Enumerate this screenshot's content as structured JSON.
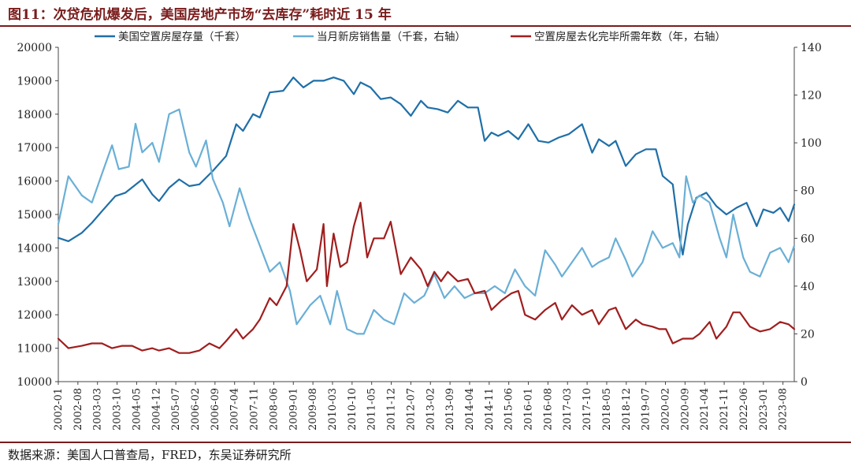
{
  "header": {
    "title": "图11：次贷危机爆发后，美国房地产市场“去库存”耗时近 15 年"
  },
  "footer": {
    "source": "数据来源：美国人口普查局，FRED，东吴证券研究所"
  },
  "colors": {
    "inventory": "#1f6fa8",
    "new_sales": "#6aafd6",
    "months_supply": "#a01e1e",
    "title": "#7a1c1c"
  },
  "chart_data": {
    "type": "line",
    "legend_position": "top",
    "grid": false,
    "x_tick_labels": [
      "2002-01",
      "2002-08",
      "2003-03",
      "2003-10",
      "2004-05",
      "2004-12",
      "2005-07",
      "2006-02",
      "2006-09",
      "2007-04",
      "2007-11",
      "2008-06",
      "2009-01",
      "2009-08",
      "2010-03",
      "2010-10",
      "2011-05",
      "2011-12",
      "2012-07",
      "2013-02",
      "2013-09",
      "2014-04",
      "2014-11",
      "2015-06",
      "2016-01",
      "2016-08",
      "2017-03",
      "2017-10",
      "2018-05",
      "2018-12",
      "2019-07",
      "2020-02",
      "2020-09",
      "2021-04",
      "2021-11",
      "2022-06",
      "2023-01",
      "2023-08"
    ],
    "x_range": [
      2002.0,
      2023.92
    ],
    "left_axis": {
      "min": 10000,
      "max": 20000,
      "ticks": [
        10000,
        11000,
        12000,
        13000,
        14000,
        15000,
        16000,
        17000,
        18000,
        19000,
        20000
      ]
    },
    "right_axis": {
      "min": 0,
      "max": 140,
      "ticks": [
        0,
        20,
        40,
        60,
        80,
        100,
        120,
        140
      ]
    },
    "series": [
      {
        "name": "美国空置房屋存量（千套）",
        "axis": "left",
        "color_key": "inventory",
        "points": [
          [
            2002.0,
            14300
          ],
          [
            2002.3,
            14200
          ],
          [
            2002.7,
            14450
          ],
          [
            2003.0,
            14750
          ],
          [
            2003.3,
            15100
          ],
          [
            2003.7,
            15550
          ],
          [
            2004.0,
            15650
          ],
          [
            2004.5,
            16050
          ],
          [
            2004.8,
            15600
          ],
          [
            2005.0,
            15400
          ],
          [
            2005.3,
            15800
          ],
          [
            2005.6,
            16050
          ],
          [
            2005.9,
            15850
          ],
          [
            2006.2,
            15900
          ],
          [
            2006.6,
            16300
          ],
          [
            2007.0,
            16750
          ],
          [
            2007.3,
            17700
          ],
          [
            2007.5,
            17500
          ],
          [
            2007.8,
            18000
          ],
          [
            2008.0,
            17900
          ],
          [
            2008.3,
            18650
          ],
          [
            2008.7,
            18700
          ],
          [
            2009.0,
            19100
          ],
          [
            2009.3,
            18800
          ],
          [
            2009.6,
            19000
          ],
          [
            2009.9,
            19000
          ],
          [
            2010.2,
            19100
          ],
          [
            2010.5,
            19000
          ],
          [
            2010.8,
            18600
          ],
          [
            2011.0,
            18950
          ],
          [
            2011.3,
            18800
          ],
          [
            2011.6,
            18450
          ],
          [
            2011.9,
            18500
          ],
          [
            2012.2,
            18300
          ],
          [
            2012.5,
            17950
          ],
          [
            2012.8,
            18400
          ],
          [
            2013.0,
            18200
          ],
          [
            2013.3,
            18150
          ],
          [
            2013.6,
            18050
          ],
          [
            2013.9,
            18400
          ],
          [
            2014.2,
            18200
          ],
          [
            2014.5,
            18200
          ],
          [
            2014.7,
            17200
          ],
          [
            2014.9,
            17450
          ],
          [
            2015.1,
            17350
          ],
          [
            2015.4,
            17500
          ],
          [
            2015.7,
            17250
          ],
          [
            2016.0,
            17700
          ],
          [
            2016.3,
            17200
          ],
          [
            2016.6,
            17150
          ],
          [
            2016.9,
            17300
          ],
          [
            2017.2,
            17400
          ],
          [
            2017.6,
            17700
          ],
          [
            2017.9,
            16850
          ],
          [
            2018.1,
            17250
          ],
          [
            2018.4,
            17050
          ],
          [
            2018.6,
            17200
          ],
          [
            2018.9,
            16450
          ],
          [
            2019.2,
            16800
          ],
          [
            2019.5,
            16950
          ],
          [
            2019.8,
            16950
          ],
          [
            2020.0,
            16150
          ],
          [
            2020.3,
            15900
          ],
          [
            2020.5,
            14350
          ],
          [
            2020.6,
            13800
          ],
          [
            2020.75,
            14700
          ],
          [
            2021.0,
            15500
          ],
          [
            2021.3,
            15650
          ],
          [
            2021.6,
            15250
          ],
          [
            2021.9,
            15000
          ],
          [
            2022.2,
            15200
          ],
          [
            2022.5,
            15350
          ],
          [
            2022.8,
            14650
          ],
          [
            2023.0,
            15150
          ],
          [
            2023.3,
            15050
          ],
          [
            2023.5,
            15200
          ],
          [
            2023.75,
            14800
          ],
          [
            2023.92,
            15300
          ]
        ]
      },
      {
        "name": "当月新房销售量（千套，右轴）",
        "axis": "right",
        "color_key": "new_sales",
        "points": [
          [
            2002.0,
            66
          ],
          [
            2002.3,
            86
          ],
          [
            2002.7,
            78
          ],
          [
            2003.0,
            75
          ],
          [
            2003.3,
            87
          ],
          [
            2003.6,
            99
          ],
          [
            2003.8,
            89
          ],
          [
            2004.1,
            90
          ],
          [
            2004.3,
            108
          ],
          [
            2004.5,
            96
          ],
          [
            2004.8,
            100
          ],
          [
            2005.0,
            92
          ],
          [
            2005.3,
            112
          ],
          [
            2005.6,
            114
          ],
          [
            2005.9,
            96
          ],
          [
            2006.1,
            90
          ],
          [
            2006.4,
            101
          ],
          [
            2006.6,
            85
          ],
          [
            2006.9,
            75
          ],
          [
            2007.1,
            65
          ],
          [
            2007.4,
            81
          ],
          [
            2007.7,
            68
          ],
          [
            2008.0,
            57
          ],
          [
            2008.3,
            46
          ],
          [
            2008.6,
            50
          ],
          [
            2008.9,
            38
          ],
          [
            2009.1,
            24
          ],
          [
            2009.5,
            32
          ],
          [
            2009.8,
            36
          ],
          [
            2010.1,
            24
          ],
          [
            2010.3,
            38
          ],
          [
            2010.6,
            22
          ],
          [
            2010.9,
            20
          ],
          [
            2011.1,
            20
          ],
          [
            2011.4,
            30
          ],
          [
            2011.7,
            26
          ],
          [
            2012.0,
            24
          ],
          [
            2012.3,
            37
          ],
          [
            2012.6,
            33
          ],
          [
            2012.9,
            36
          ],
          [
            2013.2,
            45
          ],
          [
            2013.5,
            35
          ],
          [
            2013.8,
            40
          ],
          [
            2014.1,
            35
          ],
          [
            2014.4,
            37
          ],
          [
            2014.7,
            37
          ],
          [
            2015.0,
            40
          ],
          [
            2015.3,
            37
          ],
          [
            2015.6,
            47
          ],
          [
            2015.9,
            40
          ],
          [
            2016.2,
            36
          ],
          [
            2016.5,
            55
          ],
          [
            2016.8,
            49
          ],
          [
            2017.0,
            44
          ],
          [
            2017.3,
            50
          ],
          [
            2017.6,
            56
          ],
          [
            2017.9,
            48
          ],
          [
            2018.1,
            50
          ],
          [
            2018.4,
            52
          ],
          [
            2018.6,
            60
          ],
          [
            2018.9,
            51
          ],
          [
            2019.1,
            44
          ],
          [
            2019.4,
            50
          ],
          [
            2019.7,
            63
          ],
          [
            2020.0,
            56
          ],
          [
            2020.3,
            58
          ],
          [
            2020.5,
            52
          ],
          [
            2020.7,
            86
          ],
          [
            2020.9,
            75
          ],
          [
            2021.1,
            78
          ],
          [
            2021.4,
            75
          ],
          [
            2021.7,
            60
          ],
          [
            2021.9,
            52
          ],
          [
            2022.1,
            70
          ],
          [
            2022.4,
            52
          ],
          [
            2022.6,
            46
          ],
          [
            2022.9,
            44
          ],
          [
            2023.2,
            54
          ],
          [
            2023.5,
            56
          ],
          [
            2023.75,
            50
          ],
          [
            2023.92,
            57
          ]
        ]
      },
      {
        "name": "空置房屋去化完毕所需年数（年，右轴）",
        "axis": "right",
        "color_key": "months_supply",
        "points": [
          [
            2002.0,
            18
          ],
          [
            2002.3,
            14
          ],
          [
            2002.7,
            15
          ],
          [
            2003.0,
            16
          ],
          [
            2003.3,
            16
          ],
          [
            2003.6,
            14
          ],
          [
            2003.9,
            15
          ],
          [
            2004.2,
            15
          ],
          [
            2004.5,
            13
          ],
          [
            2004.8,
            14
          ],
          [
            2005.0,
            13
          ],
          [
            2005.3,
            14
          ],
          [
            2005.6,
            12
          ],
          [
            2005.9,
            12
          ],
          [
            2006.2,
            13
          ],
          [
            2006.5,
            16
          ],
          [
            2006.8,
            14
          ],
          [
            2007.0,
            17
          ],
          [
            2007.3,
            22
          ],
          [
            2007.5,
            18
          ],
          [
            2007.8,
            22
          ],
          [
            2008.0,
            26
          ],
          [
            2008.3,
            35
          ],
          [
            2008.5,
            32
          ],
          [
            2008.8,
            40
          ],
          [
            2009.0,
            66
          ],
          [
            2009.2,
            55
          ],
          [
            2009.4,
            42
          ],
          [
            2009.7,
            47
          ],
          [
            2009.9,
            66
          ],
          [
            2010.0,
            40
          ],
          [
            2010.2,
            62
          ],
          [
            2010.4,
            48
          ],
          [
            2010.6,
            50
          ],
          [
            2010.8,
            65
          ],
          [
            2011.0,
            75
          ],
          [
            2011.2,
            52
          ],
          [
            2011.4,
            60
          ],
          [
            2011.7,
            60
          ],
          [
            2011.9,
            67
          ],
          [
            2012.2,
            45
          ],
          [
            2012.5,
            52
          ],
          [
            2012.8,
            47
          ],
          [
            2013.0,
            40
          ],
          [
            2013.2,
            46
          ],
          [
            2013.4,
            42
          ],
          [
            2013.6,
            46
          ],
          [
            2013.9,
            42
          ],
          [
            2014.2,
            43
          ],
          [
            2014.4,
            37
          ],
          [
            2014.7,
            38
          ],
          [
            2014.9,
            30
          ],
          [
            2015.2,
            34
          ],
          [
            2015.5,
            37
          ],
          [
            2015.7,
            38
          ],
          [
            2015.9,
            28
          ],
          [
            2016.2,
            26
          ],
          [
            2016.5,
            30
          ],
          [
            2016.8,
            33
          ],
          [
            2017.0,
            26
          ],
          [
            2017.3,
            32
          ],
          [
            2017.6,
            28
          ],
          [
            2017.9,
            30
          ],
          [
            2018.1,
            24
          ],
          [
            2018.4,
            30
          ],
          [
            2018.6,
            31
          ],
          [
            2018.9,
            22
          ],
          [
            2019.2,
            26
          ],
          [
            2019.4,
            24
          ],
          [
            2019.7,
            23
          ],
          [
            2019.9,
            22
          ],
          [
            2020.1,
            22
          ],
          [
            2020.3,
            16
          ],
          [
            2020.6,
            18
          ],
          [
            2020.9,
            18
          ],
          [
            2021.1,
            20
          ],
          [
            2021.4,
            25
          ],
          [
            2021.6,
            18
          ],
          [
            2021.9,
            23
          ],
          [
            2022.1,
            29
          ],
          [
            2022.3,
            29
          ],
          [
            2022.6,
            23
          ],
          [
            2022.9,
            21
          ],
          [
            2023.2,
            22
          ],
          [
            2023.5,
            25
          ],
          [
            2023.75,
            24
          ],
          [
            2023.92,
            22
          ]
        ]
      }
    ]
  }
}
